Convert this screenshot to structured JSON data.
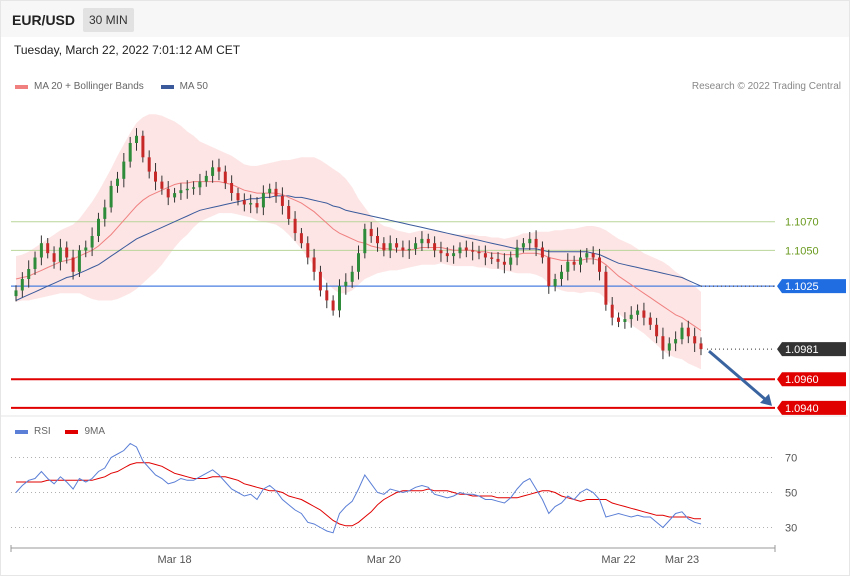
{
  "header": {
    "symbol": "EUR/USD",
    "timeframe": "30 MIN"
  },
  "timestamp": "Tuesday, March 22, 2022 7:01:12 AM CET",
  "legend": {
    "ma20": {
      "label": "MA 20 + Bollinger Bands",
      "color": "#f08080"
    },
    "ma50": {
      "label": "MA 50",
      "color": "#3a5a9b"
    }
  },
  "credit": "Research © 2022 Trading Central",
  "rsi_legend": {
    "rsi": {
      "label": "RSI",
      "color": "#5b7fd6"
    },
    "ma9": {
      "label": "9MA",
      "color": "#e00000"
    }
  },
  "chart_data": {
    "type": "candlestick",
    "x_ticks": [
      "Mar 18",
      "Mar 20",
      "Mar 22",
      "Mar 23"
    ],
    "price_ylim": [
      1.0935,
      1.1155
    ],
    "levels": [
      {
        "value": 1.107,
        "label": "1.1070",
        "style": "thin-green"
      },
      {
        "value": 1.105,
        "label": "1.1050",
        "style": "thin-green"
      },
      {
        "value": 1.1025,
        "label": "1.1025",
        "style": "blue"
      },
      {
        "value": 1.0981,
        "label": "1.0981",
        "style": "current"
      },
      {
        "value": 1.096,
        "label": "1.0960",
        "style": "red"
      },
      {
        "value": 1.094,
        "label": "1.0940",
        "style": "red"
      }
    ],
    "close": [
      1.1022,
      1.103,
      1.1037,
      1.1045,
      1.1055,
      1.1048,
      1.1042,
      1.1052,
      1.1045,
      1.1035,
      1.105,
      1.1052,
      1.106,
      1.1072,
      1.108,
      1.1095,
      1.11,
      1.1112,
      1.1125,
      1.113,
      1.1115,
      1.1105,
      1.1098,
      1.1093,
      1.1087,
      1.109,
      1.1092,
      1.1093,
      1.1094,
      1.1098,
      1.1102,
      1.1108,
      1.1105,
      1.1097,
      1.109,
      1.1085,
      1.1082,
      1.1083,
      1.108,
      1.109,
      1.1093,
      1.1088,
      1.1081,
      1.1072,
      1.1062,
      1.1055,
      1.1045,
      1.1035,
      1.1022,
      1.1015,
      1.1008,
      1.1025,
      1.1028,
      1.1035,
      1.1048,
      1.1065,
      1.106,
      1.1055,
      1.105,
      1.1055,
      1.1052,
      1.105,
      1.1051,
      1.1055,
      1.1058,
      1.1055,
      1.105,
      1.1048,
      1.1046,
      1.1048,
      1.1052,
      1.105,
      1.1049,
      1.1048,
      1.1045,
      1.1044,
      1.1042,
      1.104,
      1.1045,
      1.1052,
      1.1055,
      1.1058,
      1.1052,
      1.1045,
      1.1025,
      1.103,
      1.1035,
      1.1042,
      1.104,
      1.1045,
      1.1048,
      1.1045,
      1.1035,
      1.1012,
      1.1003,
      1.1,
      1.1002,
      1.1005,
      1.1008,
      1.1003,
      1.0998,
      1.099,
      1.098,
      1.0985,
      1.0988,
      1.0996,
      1.099,
      1.0985,
      1.0981
    ],
    "open_first": 1.1018,
    "ma20": [
      1.103,
      1.1031,
      1.1032,
      1.1034,
      1.1036,
      1.1038,
      1.104,
      1.1042,
      1.1043,
      1.1044,
      1.1046,
      1.1048,
      1.105,
      1.1053,
      1.1057,
      1.1061,
      1.1066,
      1.1071,
      1.1076,
      1.1081,
      1.1085,
      1.1088,
      1.109,
      1.1092,
      1.1094,
      1.1096,
      1.1097,
      1.1097,
      1.1098,
      1.1098,
      1.1098,
      1.1098,
      1.1098,
      1.1097,
      1.1096,
      1.1094,
      1.1092,
      1.1091,
      1.109,
      1.109,
      1.109,
      1.109,
      1.1089,
      1.1087,
      1.1085,
      1.1083,
      1.108,
      1.1077,
      1.1073,
      1.1069,
      1.1065,
      1.1062,
      1.106,
      1.1058,
      1.1056,
      1.1055,
      1.1053,
      1.1052,
      1.1051,
      1.1051,
      1.105,
      1.105,
      1.105,
      1.1051,
      1.1052,
      1.1052,
      1.1052,
      1.1052,
      1.1051,
      1.105,
      1.105,
      1.105,
      1.105,
      1.1049,
      1.1049,
      1.1048,
      1.1048,
      1.1047,
      1.1047,
      1.1047,
      1.1048,
      1.1048,
      1.1048,
      1.1047,
      1.1045,
      1.1044,
      1.1043,
      1.1043,
      1.1043,
      1.1043,
      1.1044,
      1.1044,
      1.1043,
      1.104,
      1.1036,
      1.1032,
      1.1029,
      1.1026,
      1.1023,
      1.102,
      1.1017,
      1.1014,
      1.1011,
      1.1008,
      1.1005,
      1.1003,
      1.1,
      1.0997,
      1.0994
    ],
    "ma50": [
      1.1015,
      1.1017,
      1.1019,
      1.1021,
      1.1023,
      1.1025,
      1.1027,
      1.1029,
      1.1031,
      1.1032,
      1.1034,
      1.1036,
      1.1038,
      1.104,
      1.1043,
      1.1046,
      1.1049,
      1.1052,
      1.1055,
      1.1058,
      1.106,
      1.1062,
      1.1064,
      1.1066,
      1.1068,
      1.107,
      1.1072,
      1.1074,
      1.1076,
      1.1078,
      1.1079,
      1.108,
      1.1081,
      1.1082,
      1.1083,
      1.1084,
      1.1085,
      1.1086,
      1.1086,
      1.1087,
      1.1087,
      1.1088,
      1.1088,
      1.1088,
      1.1087,
      1.1087,
      1.1086,
      1.1085,
      1.1084,
      1.1083,
      1.1081,
      1.108,
      1.1078,
      1.1077,
      1.1076,
      1.1075,
      1.1074,
      1.1073,
      1.1072,
      1.1071,
      1.107,
      1.1069,
      1.1068,
      1.1067,
      1.1066,
      1.1065,
      1.1064,
      1.1063,
      1.1062,
      1.1061,
      1.106,
      1.1059,
      1.1058,
      1.1057,
      1.1056,
      1.1055,
      1.1054,
      1.1053,
      1.1052,
      1.1051,
      1.1051,
      1.1051,
      1.1051,
      1.105,
      1.1049,
      1.1049,
      1.1049,
      1.1049,
      1.1049,
      1.1049,
      1.1049,
      1.1048,
      1.1047,
      1.1045,
      1.1043,
      1.1041,
      1.104,
      1.1039,
      1.1038,
      1.1037,
      1.1036,
      1.1035,
      1.1034,
      1.1033,
      1.1032,
      1.1031,
      1.1029,
      1.1027,
      1.1025
    ],
    "bb_width": [
      0.0016,
      0.0016,
      0.0017,
      0.0018,
      0.0019,
      0.002,
      0.0021,
      0.0022,
      0.0023,
      0.0024,
      0.0026,
      0.003,
      0.0034,
      0.0038,
      0.0042,
      0.0046,
      0.005,
      0.0053,
      0.0056,
      0.0058,
      0.0058,
      0.0057,
      0.0055,
      0.0052,
      0.0048,
      0.0044,
      0.004,
      0.0036,
      0.0032,
      0.0028,
      0.0026,
      0.0024,
      0.0022,
      0.0021,
      0.002,
      0.0019,
      0.0018,
      0.0018,
      0.0019,
      0.002,
      0.0021,
      0.0022,
      0.0024,
      0.0026,
      0.0029,
      0.0032,
      0.0035,
      0.0038,
      0.004,
      0.0041,
      0.0042,
      0.0042,
      0.004,
      0.0036,
      0.003,
      0.0025,
      0.0021,
      0.0018,
      0.0016,
      0.0015,
      0.0014,
      0.0013,
      0.0012,
      0.0012,
      0.0012,
      0.0012,
      0.0012,
      0.0011,
      0.0011,
      0.0011,
      0.0011,
      0.0011,
      0.0011,
      0.0011,
      0.0011,
      0.0011,
      0.0011,
      0.0011,
      0.0012,
      0.0013,
      0.0014,
      0.0014,
      0.0015,
      0.0016,
      0.0018,
      0.002,
      0.0021,
      0.0022,
      0.0022,
      0.0023,
      0.0023,
      0.0023,
      0.0023,
      0.0024,
      0.0025,
      0.0026,
      0.0027,
      0.0028,
      0.0028,
      0.0028,
      0.0029,
      0.003,
      0.0031,
      0.0031,
      0.003,
      0.0029,
      0.0029,
      0.0028,
      0.0027,
      0.0026,
      0.0025
    ],
    "rsi_ticks": [
      "70",
      "50",
      "30"
    ],
    "rsi_ylim": [
      20,
      80
    ],
    "rsi": [
      50,
      54,
      57,
      58,
      62,
      58,
      55,
      59,
      56,
      52,
      58,
      56,
      58,
      62,
      64,
      70,
      72,
      74,
      78,
      76,
      68,
      64,
      60,
      58,
      55,
      56,
      58,
      57,
      57,
      59,
      61,
      63,
      60,
      56,
      52,
      50,
      48,
      49,
      46,
      52,
      54,
      51,
      46,
      43,
      40,
      38,
      33,
      32,
      30,
      28,
      27,
      38,
      42,
      45,
      52,
      60,
      55,
      50,
      49,
      52,
      51,
      50,
      51,
      53,
      54,
      53,
      49,
      48,
      47,
      48,
      50,
      49,
      49,
      48,
      46,
      46,
      45,
      44,
      47,
      52,
      56,
      58,
      52,
      46,
      38,
      42,
      44,
      48,
      46,
      50,
      52,
      50,
      46,
      36,
      37,
      38,
      37,
      36,
      37,
      36,
      36,
      33,
      30,
      34,
      38,
      39,
      35,
      33,
      32
    ],
    "rsi_ma": [
      56,
      56,
      56,
      56,
      56,
      57,
      57,
      57,
      57,
      57,
      57,
      57,
      57,
      58,
      59,
      61,
      62,
      64,
      66,
      67,
      67,
      67,
      66,
      65,
      63,
      61,
      60,
      59,
      58,
      58,
      58,
      59,
      59,
      59,
      58,
      57,
      55,
      54,
      53,
      52,
      51,
      51,
      50,
      48,
      47,
      46,
      44,
      42,
      40,
      37,
      34,
      32,
      31,
      31,
      33,
      36,
      39,
      43,
      46,
      48,
      50,
      51,
      51,
      51,
      51,
      52,
      51,
      51,
      51,
      50,
      49,
      49,
      48,
      48,
      48,
      48,
      47,
      47,
      47,
      47,
      48,
      49,
      50,
      51,
      51,
      50,
      48,
      47,
      46,
      45,
      46,
      46,
      46,
      46,
      44,
      43,
      42,
      41,
      40,
      39,
      38,
      37,
      37,
      36,
      36,
      36,
      36,
      35,
      35
    ]
  }
}
